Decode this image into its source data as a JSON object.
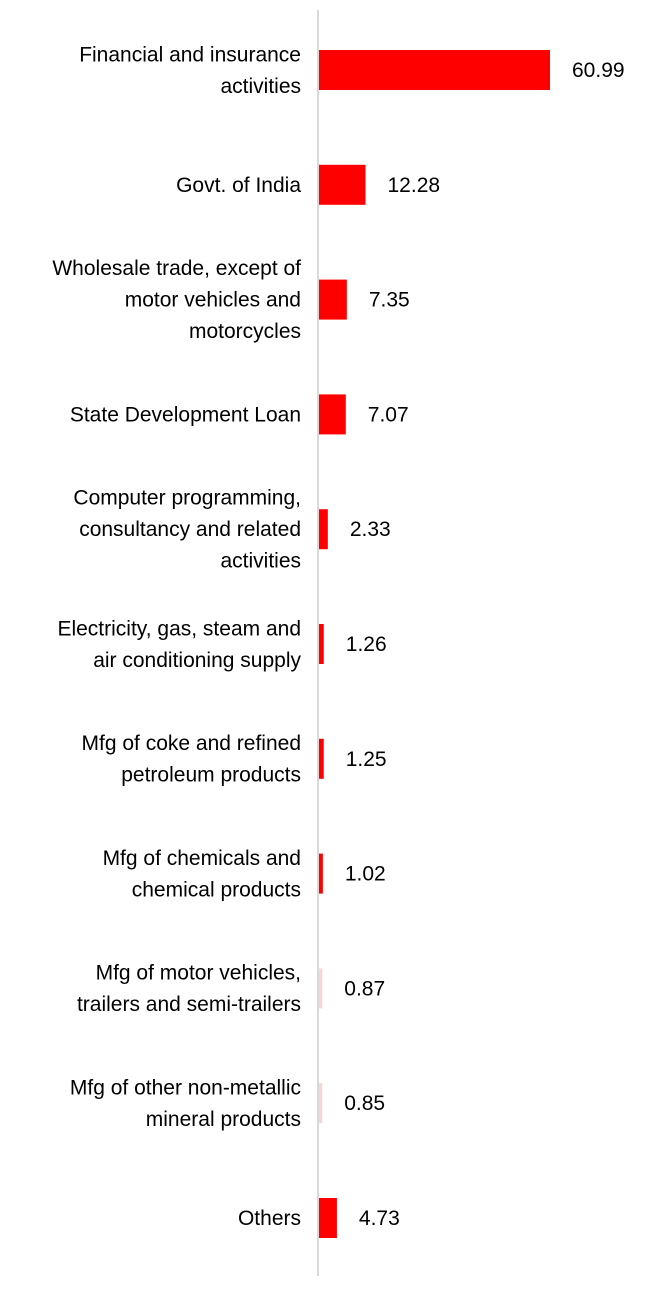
{
  "chart_data": {
    "type": "bar",
    "orientation": "horizontal",
    "categories": [
      [
        "Financial and insurance",
        "activities"
      ],
      [
        "Govt. of India"
      ],
      [
        "Wholesale trade, except of",
        "motor vehicles and",
        "motorcycles"
      ],
      [
        "State Development Loan"
      ],
      [
        "Computer programming,",
        "consultancy and related",
        "activities"
      ],
      [
        "Electricity, gas, steam and",
        "air conditioning supply"
      ],
      [
        "Mfg of coke and refined",
        "petroleum products"
      ],
      [
        "Mfg of chemicals and",
        "chemical products"
      ],
      [
        "Mfg of motor vehicles,",
        "trailers and semi-trailers"
      ],
      [
        "Mfg of other non-metallic",
        "mineral products"
      ],
      [
        "Others"
      ]
    ],
    "values": [
      60.99,
      12.28,
      7.35,
      7.07,
      2.33,
      1.26,
      1.25,
      1.02,
      0.87,
      0.85,
      4.73
    ],
    "value_labels": [
      "60.99",
      "12.28",
      "7.35",
      "7.07",
      "2.33",
      "1.26",
      "1.25",
      "1.02",
      "0.87",
      "0.85",
      "4.73"
    ],
    "bar_colors": [
      "#ff0000",
      "#ff0000",
      "#ff0000",
      "#ff0000",
      "#ff0000",
      "#ff0000",
      "#ff0000",
      "#ff0000",
      "#fbd5d5",
      "#fbd5d5",
      "#ff0000"
    ],
    "axis_color": "#d9d9d9",
    "title": "",
    "xlabel": "",
    "ylabel": "",
    "xlim": [
      0,
      60.99
    ],
    "grid": false,
    "legend": "none"
  }
}
